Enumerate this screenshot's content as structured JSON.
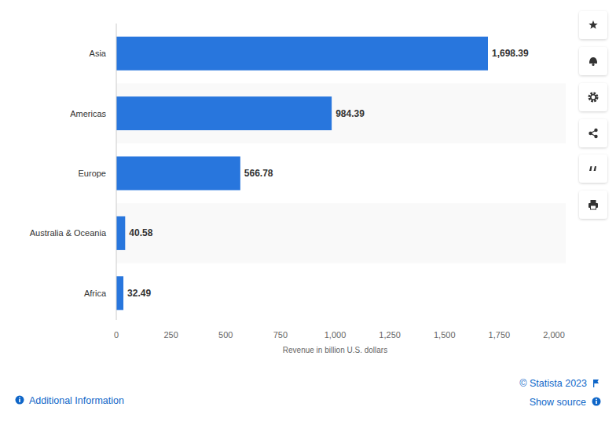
{
  "chart_data": {
    "type": "bar",
    "orientation": "horizontal",
    "categories": [
      "Asia",
      "Americas",
      "Europe",
      "Australia & Oceania",
      "Africa"
    ],
    "values": [
      1698.39,
      984.39,
      566.78,
      40.58,
      32.49
    ],
    "value_labels": [
      "1,698.39",
      "984.39",
      "566.78",
      "40.58",
      "32.49"
    ],
    "data_labels": true,
    "color": "#2876dd",
    "xlabel": "Revenue in billion U.S. dollars",
    "xlim": [
      0,
      2000
    ],
    "xticks": [
      0,
      250,
      500,
      750,
      {
        "value": 1000,
        "label": "1,000"
      },
      {
        "value": 1250,
        "label": "1,250"
      },
      {
        "value": 1500,
        "label": "1,500"
      },
      {
        "value": 1750,
        "label": "1,750"
      },
      {
        "value": 2000,
        "label": "2,000"
      }
    ],
    "grid": false
  },
  "footer": {
    "copyright": "© Statista 2023",
    "additional_information": "Additional Information",
    "show_source": "Show source"
  }
}
